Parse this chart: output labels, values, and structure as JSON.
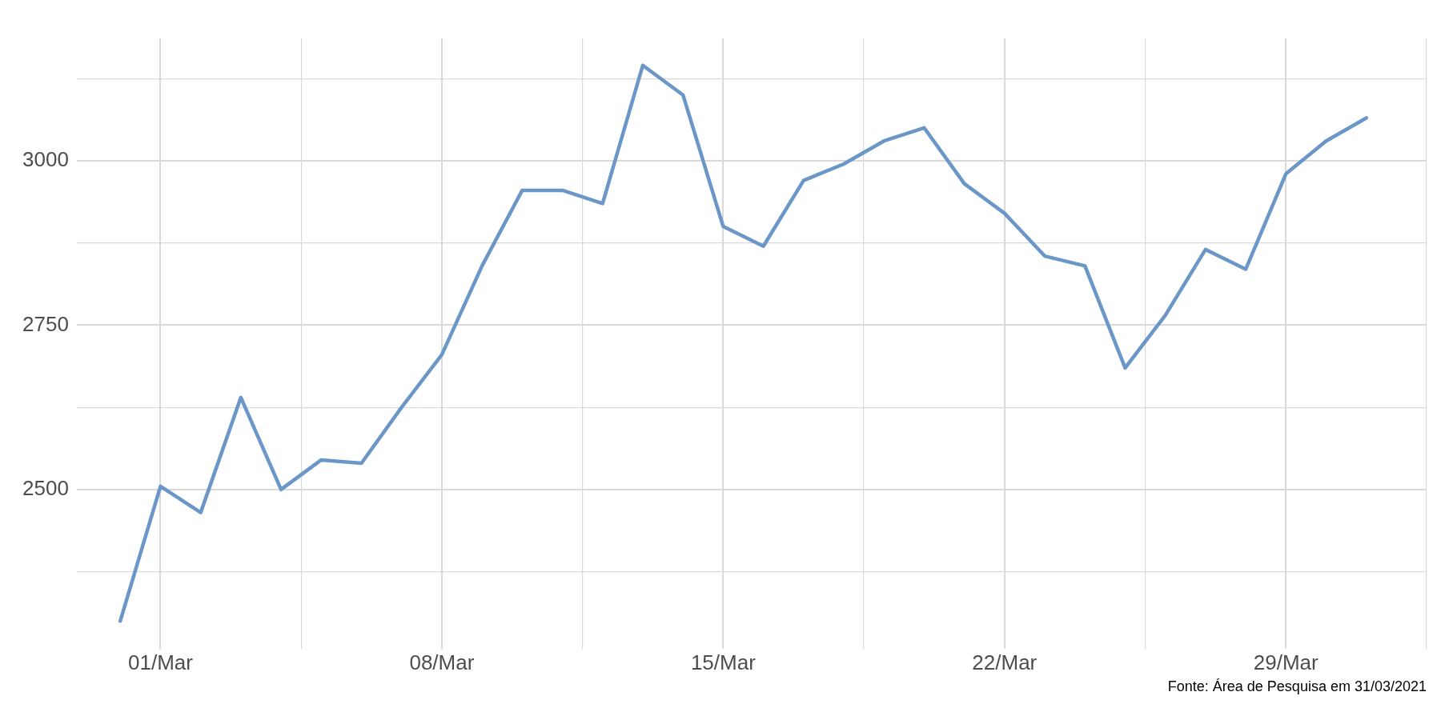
{
  "chart_data": {
    "type": "line",
    "annotations": [
      "Fonte: Área de Pesquisa em 31/03/2021"
    ],
    "x": [
      "2021-02-28",
      "2021-03-01",
      "2021-03-02",
      "2021-03-03",
      "2021-03-04",
      "2021-03-05",
      "2021-03-06",
      "2021-03-07",
      "2021-03-08",
      "2021-03-09",
      "2021-03-10",
      "2021-03-11",
      "2021-03-12",
      "2021-03-13",
      "2021-03-14",
      "2021-03-15",
      "2021-03-16",
      "2021-03-17",
      "2021-03-18",
      "2021-03-19",
      "2021-03-20",
      "2021-03-21",
      "2021-03-22",
      "2021-03-23",
      "2021-03-24",
      "2021-03-25",
      "2021-03-26",
      "2021-03-27",
      "2021-03-28",
      "2021-03-29",
      "2021-03-30",
      "2021-03-31"
    ],
    "series": [
      {
        "color": "#6a96c8",
        "values": [
          2300,
          2505,
          2465,
          2640,
          2500,
          2545,
          2540,
          2625,
          2705,
          2840,
          2955,
          2955,
          2935,
          3145,
          3100,
          2900,
          2870,
          2970,
          2995,
          3030,
          3050,
          2965,
          2920,
          2855,
          2840,
          2685,
          2765,
          2865,
          2835,
          2980,
          3030,
          3065
        ]
      }
    ],
    "xlim": [
      "2021-02-26T22:00",
      "2021-04-01T12:00"
    ],
    "xticks": [
      {
        "value": "2021-03-01",
        "label": "01/Mar"
      },
      {
        "value": "2021-03-04T12:00",
        "label": null
      },
      {
        "value": "2021-03-08",
        "label": "08/Mar"
      },
      {
        "value": "2021-03-11T12:00",
        "label": null
      },
      {
        "value": "2021-03-15",
        "label": "15/Mar"
      },
      {
        "value": "2021-03-18T12:00",
        "label": null
      },
      {
        "value": "2021-03-22",
        "label": "22/Mar"
      },
      {
        "value": "2021-03-25T12:00",
        "label": null
      },
      {
        "value": "2021-03-29",
        "label": "29/Mar"
      },
      {
        "value": "2021-04-01T12:00",
        "label": null
      }
    ],
    "ylim": [
      2258,
      3186
    ],
    "yticks": [
      {
        "value": 2375,
        "label": null
      },
      2500,
      {
        "value": 2625,
        "label": null
      },
      2750,
      {
        "value": 2875,
        "label": null
      },
      3000,
      {
        "value": 3125,
        "label": null
      }
    ],
    "grid": true,
    "legend": false,
    "marker": "none",
    "line_style": "solid"
  }
}
